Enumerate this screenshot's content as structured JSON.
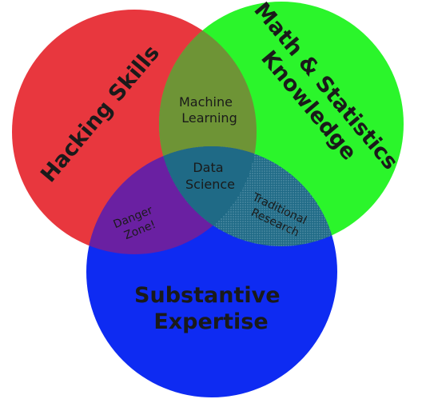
{
  "colors": {
    "hacking": "#e8373e",
    "math": "#2bf52b",
    "substantive": "#0e2bf2",
    "machine_learning": "#6e9436",
    "data_science": "#1f6a86",
    "danger_zone": "#6a20a2",
    "traditional_research": "#1f6a86",
    "text": "#1a1a1a"
  },
  "circles": {
    "hacking": [
      "Hacking Skills"
    ],
    "math": [
      "Math & Statistics",
      "Knowledge"
    ],
    "substantive": [
      "Substantive",
      "Expertise"
    ]
  },
  "overlaps": {
    "machine_learning": [
      "Machine",
      "Learning"
    ],
    "data_science": [
      "Data",
      "Science"
    ],
    "danger_zone": [
      "Danger",
      "Zone!"
    ],
    "traditional_research": [
      "Traditional",
      "Research"
    ]
  }
}
